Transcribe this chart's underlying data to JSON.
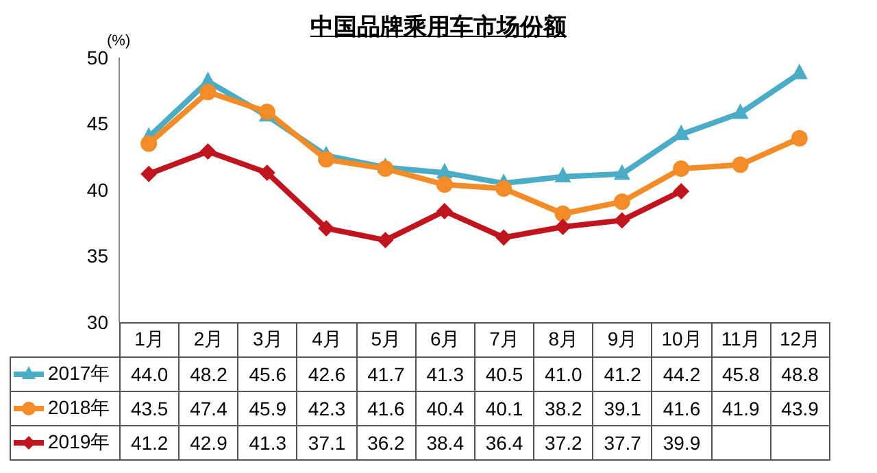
{
  "chart_data": {
    "type": "line",
    "title": "中国品牌乘用车市场份额",
    "ylabel": "(%)",
    "categories": [
      "1月",
      "2月",
      "3月",
      "4月",
      "5月",
      "6月",
      "7月",
      "8月",
      "9月",
      "10月",
      "11月",
      "12月"
    ],
    "series": [
      {
        "name": "2017年",
        "color": "#4bacc6",
        "marker": "triangle",
        "values": [
          44.0,
          48.2,
          45.6,
          42.6,
          41.7,
          41.3,
          40.5,
          41.0,
          41.2,
          44.2,
          45.8,
          48.8
        ],
        "value_labels": [
          "44.0",
          "48.2",
          "45.6",
          "42.6",
          "41.7",
          "41.3",
          "40.5",
          "41.0",
          "41.2",
          "44.2",
          "45.8",
          "48.8"
        ]
      },
      {
        "name": "2018年",
        "color": "#f28c28",
        "marker": "circle",
        "values": [
          43.5,
          47.4,
          45.9,
          42.3,
          41.6,
          40.4,
          40.1,
          38.2,
          39.1,
          41.6,
          41.9,
          43.9
        ],
        "value_labels": [
          "43.5",
          "47.4",
          "45.9",
          "42.3",
          "41.6",
          "40.4",
          "40.1",
          "38.2",
          "39.1",
          "41.6",
          "41.9",
          "43.9"
        ]
      },
      {
        "name": "2019年",
        "color": "#c0141e",
        "marker": "diamond",
        "values": [
          41.2,
          42.9,
          41.3,
          37.1,
          36.2,
          38.4,
          36.4,
          37.2,
          37.7,
          39.9,
          null,
          null
        ],
        "value_labels": [
          "41.2",
          "42.9",
          "41.3",
          "37.1",
          "36.2",
          "38.4",
          "36.4",
          "37.2",
          "37.7",
          "39.9",
          null,
          null
        ]
      }
    ],
    "ylim": [
      30,
      50
    ],
    "yticks": [
      30,
      35,
      40,
      45,
      50
    ],
    "grid": false,
    "legend": "bottom"
  }
}
